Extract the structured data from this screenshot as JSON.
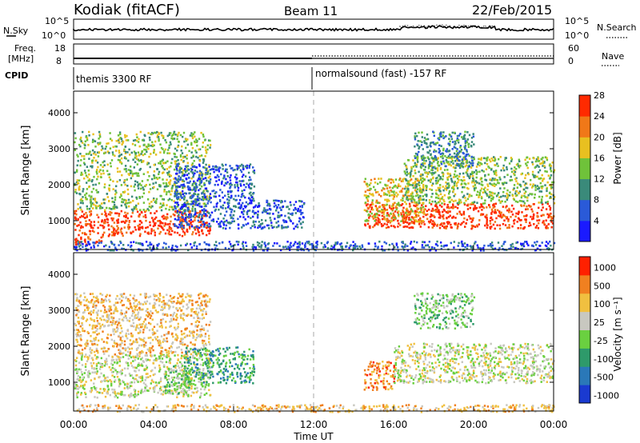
{
  "header": {
    "station": "Kodiak (fitACF)",
    "beam": "Beam 11",
    "date": "22/Feb/2015"
  },
  "top_panels": {
    "nsky_label": "N.Sky",
    "nsearch_label": "N.Search",
    "freq_label_1": "Freq.",
    "freq_label_2": "[MHz]",
    "nave_label": "Nave",
    "cpid_label": "CPID",
    "nsky_ticks": [
      "10^5",
      "10^0"
    ],
    "nsearch_ticks": [
      "10^5",
      "10^0"
    ],
    "freq_ticks": [
      "18",
      "8"
    ],
    "nave_ticks": [
      "60",
      "0"
    ],
    "cpid_segments": [
      {
        "label": "themis 3300 RF",
        "start_hour": 0
      },
      {
        "label": "normalsound (fast) -157 RF",
        "start_hour": 12
      }
    ]
  },
  "chart_data": [
    {
      "type": "heatmap",
      "panel": "power",
      "ylabel": "Slant Range [km]",
      "xlabel": "",
      "x_range_hours": [
        0,
        24
      ],
      "ylim": [
        200,
        4600
      ],
      "y_ticks": [
        1000,
        2000,
        3000,
        4000
      ],
      "colorbar": {
        "label": "Power [dB]",
        "ticks": [
          "4",
          "8",
          "12",
          "16",
          "20",
          "24",
          "28"
        ],
        "colors": [
          "#1a1aff",
          "#2a5ad8",
          "#3a8a7a",
          "#6fc23a",
          "#e8c020",
          "#f07818",
          "#ff2a00"
        ]
      },
      "scatter_regions": [
        {
          "hours": [
            0,
            6.8
          ],
          "range_km": [
            600,
            1300
          ],
          "level": 6
        },
        {
          "hours": [
            0,
            6.8
          ],
          "range_km": [
            1300,
            3500
          ],
          "level": 3
        },
        {
          "hours": [
            5,
            9
          ],
          "range_km": [
            800,
            2600
          ],
          "level": 1
        },
        {
          "hours": [
            9,
            11.5
          ],
          "range_km": [
            800,
            1600
          ],
          "level": 1
        },
        {
          "hours": [
            14.5,
            24
          ],
          "range_km": [
            800,
            1500
          ],
          "level": 6
        },
        {
          "hours": [
            14.5,
            17.5
          ],
          "range_km": [
            1000,
            2200
          ],
          "level": 4
        },
        {
          "hours": [
            16.5,
            24
          ],
          "range_km": [
            1500,
            2800
          ],
          "level": 3
        },
        {
          "hours": [
            17,
            20
          ],
          "range_km": [
            2500,
            3500
          ],
          "level": 2
        },
        {
          "hours": [
            0,
            1.5
          ],
          "range_km": [
            350,
            600
          ],
          "level": 6
        },
        {
          "hours": [
            0,
            24
          ],
          "range_km": [
            200,
            450
          ],
          "level": 1
        }
      ]
    },
    {
      "type": "heatmap",
      "panel": "velocity",
      "ylabel": "Slant Range [km]",
      "xlabel": "Time UT",
      "x_range_hours": [
        0,
        24
      ],
      "x_ticks": [
        "00:00",
        "04:00",
        "08:00",
        "12:00",
        "16:00",
        "20:00",
        "00:00"
      ],
      "ylim": [
        200,
        4600
      ],
      "y_ticks": [
        1000,
        2000,
        3000,
        4000
      ],
      "colorbar": {
        "label": "Velocity [m s⁻¹]",
        "ticks": [
          "1000",
          "500",
          "100",
          "25",
          "-25",
          "-100",
          "-500",
          "-1000"
        ],
        "colors": [
          "#1a3ad0",
          "#2a78b8",
          "#2e9a6a",
          "#6ad040",
          "#c8c8c0",
          "#f0c040",
          "#f08020",
          "#ff2000"
        ]
      },
      "scatter_regions": [
        {
          "hours": [
            0,
            6.8
          ],
          "range_km": [
            600,
            1800
          ],
          "level": 4
        },
        {
          "hours": [
            0,
            6.8
          ],
          "range_km": [
            1800,
            3500
          ],
          "level": 5
        },
        {
          "hours": [
            4.5,
            5.8
          ],
          "range_km": [
            700,
            1500
          ],
          "level": 3
        },
        {
          "hours": [
            5.5,
            9
          ],
          "range_km": [
            1000,
            2000
          ],
          "level": 2
        },
        {
          "hours": [
            14.5,
            16
          ],
          "range_km": [
            800,
            1600
          ],
          "level": 6
        },
        {
          "hours": [
            16,
            24
          ],
          "range_km": [
            1000,
            2100
          ],
          "level": 4
        },
        {
          "hours": [
            17,
            20
          ],
          "range_km": [
            2500,
            3500
          ],
          "level": 3
        },
        {
          "hours": [
            0,
            24
          ],
          "range_km": [
            200,
            400
          ],
          "level": 5
        }
      ]
    }
  ]
}
